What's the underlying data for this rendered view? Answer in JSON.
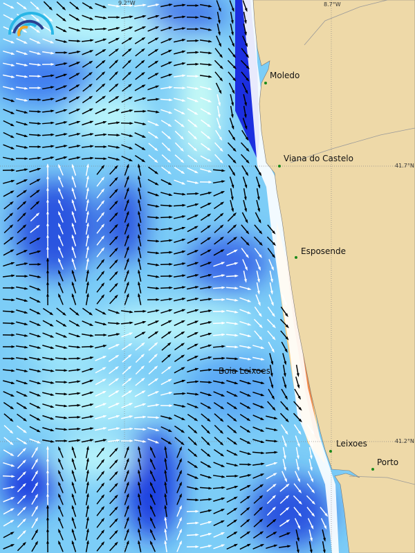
{
  "map": {
    "ticks": {
      "lon_left": "9.2°W",
      "lon_right": "8.7°W",
      "lat_top": "41.7°N",
      "lat_bottom": "41.2°N"
    },
    "places": [
      {
        "name": "Moledo"
      },
      {
        "name": "Viana do Castelo"
      },
      {
        "name": "Esposende"
      },
      {
        "name": "Boia Leixoes"
      },
      {
        "name": "Leixoes"
      },
      {
        "name": "Porto"
      }
    ],
    "colors": {
      "land": "#eed9a8",
      "ocean_low": "#b8f4fb",
      "ocean_mid": "#5aa8f5",
      "ocean_high": "#1c3fe0",
      "coast_warm": "#f5b25a",
      "arrow_dark": "#000000",
      "arrow_light": "#ffffff"
    },
    "logo": "wave-forecast-logo"
  }
}
